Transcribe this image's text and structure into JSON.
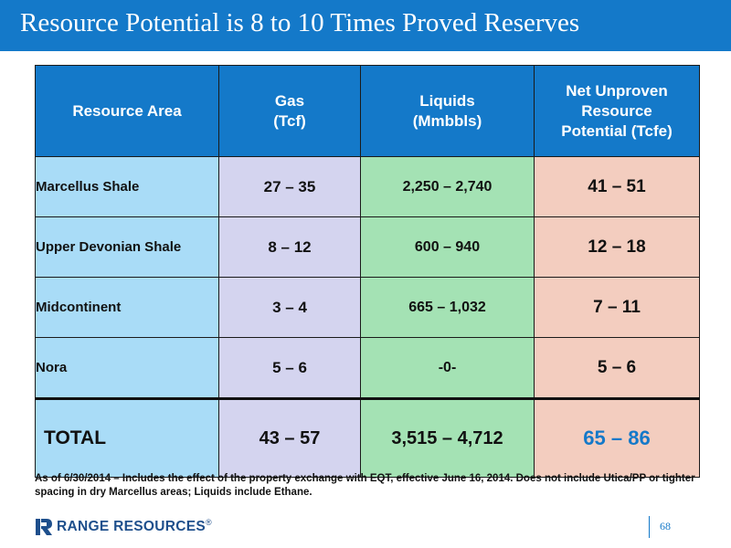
{
  "title": "Resource Potential is 8 to 10 Times Proved Reserves",
  "table": {
    "headers": {
      "area": "Resource Area",
      "gas": [
        "Gas",
        "(Tcf)"
      ],
      "liquids": [
        "Liquids",
        "(Mmbbls)"
      ],
      "net": [
        "Net Unproven",
        "Resource",
        "Potential (Tcfe)"
      ]
    },
    "rows": [
      {
        "area": "Marcellus Shale",
        "gas": "27 – 35",
        "liquids": "2,250 – 2,740",
        "net": "41 – 51"
      },
      {
        "area": "Upper Devonian Shale",
        "gas": "8 – 12",
        "liquids": "600 –  940",
        "net": "12 – 18"
      },
      {
        "area": "Midcontinent",
        "gas": "3 – 4",
        "liquids": "665  – 1,032",
        "net": "7 – 11"
      },
      {
        "area": "Nora",
        "gas": "5 – 6",
        "liquids": "-0-",
        "net": "5 – 6"
      }
    ],
    "total": {
      "area": "TOTAL",
      "gas": "43 – 57",
      "liquids": "3,515 – 4,712",
      "net": "65 – 86"
    }
  },
  "footnote": "As of 6/30/2014 – Includes the effect of the property exchange with EQT, effective June 16, 2014. Does not include Utica/PP or tighter spacing in dry Marcellus areas; Liquids include Ethane.",
  "logo": {
    "text": "RANGE RESOURCES",
    "reg": "®"
  },
  "page_number": "68",
  "colors": {
    "brand_blue": "#1479c9",
    "area_col": "#a9dcf7",
    "gas_col": "#d4d4ef",
    "liquids_col": "#a4e2b4",
    "net_col": "#f3cdbf"
  }
}
